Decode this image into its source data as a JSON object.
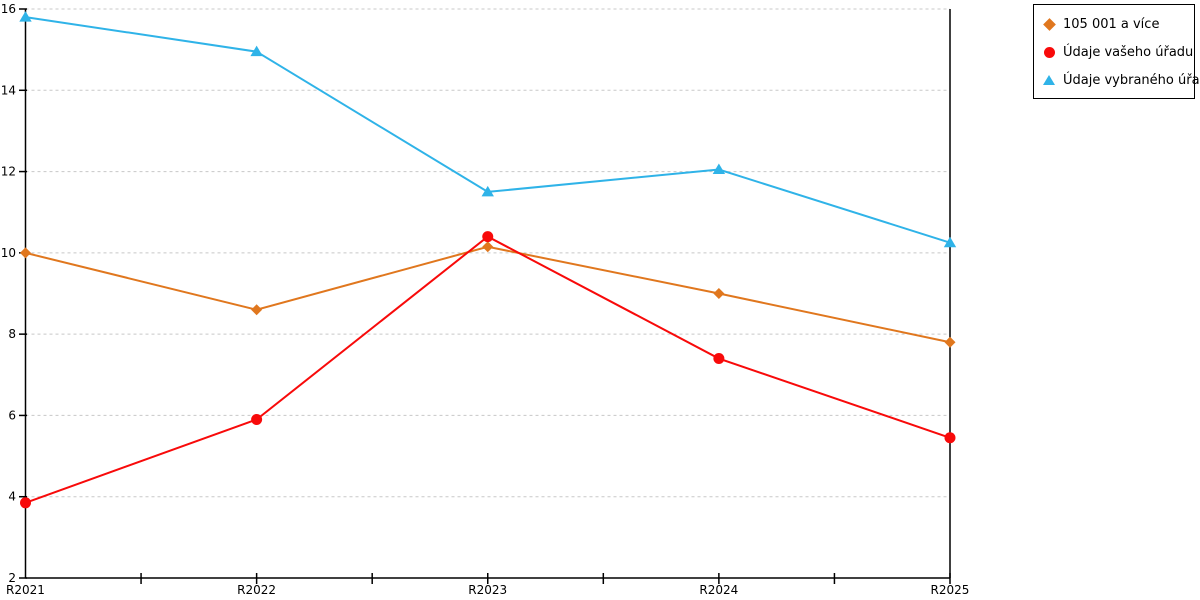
{
  "chart_data": {
    "type": "line",
    "title": "",
    "xlabel": "",
    "ylabel": "",
    "categories": [
      "R2021",
      "R2022",
      "R2023",
      "R2024",
      "R2025"
    ],
    "series": [
      {
        "name": "105 001 a více",
        "marker": "diamond",
        "color": "#E0771E",
        "values": [
          10.0,
          8.6,
          10.15,
          9.0,
          7.8
        ]
      },
      {
        "name": "Údaje vašeho úřadu",
        "marker": "circle",
        "color": "#F80A0A",
        "values": [
          3.85,
          5.9,
          10.4,
          7.4,
          5.45
        ]
      },
      {
        "name": "Údaje vybraného úřadu",
        "marker": "triangle",
        "color": "#2FB3E8",
        "values": [
          15.8,
          14.95,
          11.5,
          12.05,
          10.25
        ]
      }
    ],
    "ylim": [
      2,
      16
    ],
    "yticks": [
      2,
      4,
      6,
      8,
      10,
      12,
      14,
      16
    ],
    "grid": "horizontal-dashed",
    "grid_color": "#C8C8C8",
    "axis_color": "#000000",
    "legend_position": "top-right",
    "legend_border_color": "#000000"
  }
}
